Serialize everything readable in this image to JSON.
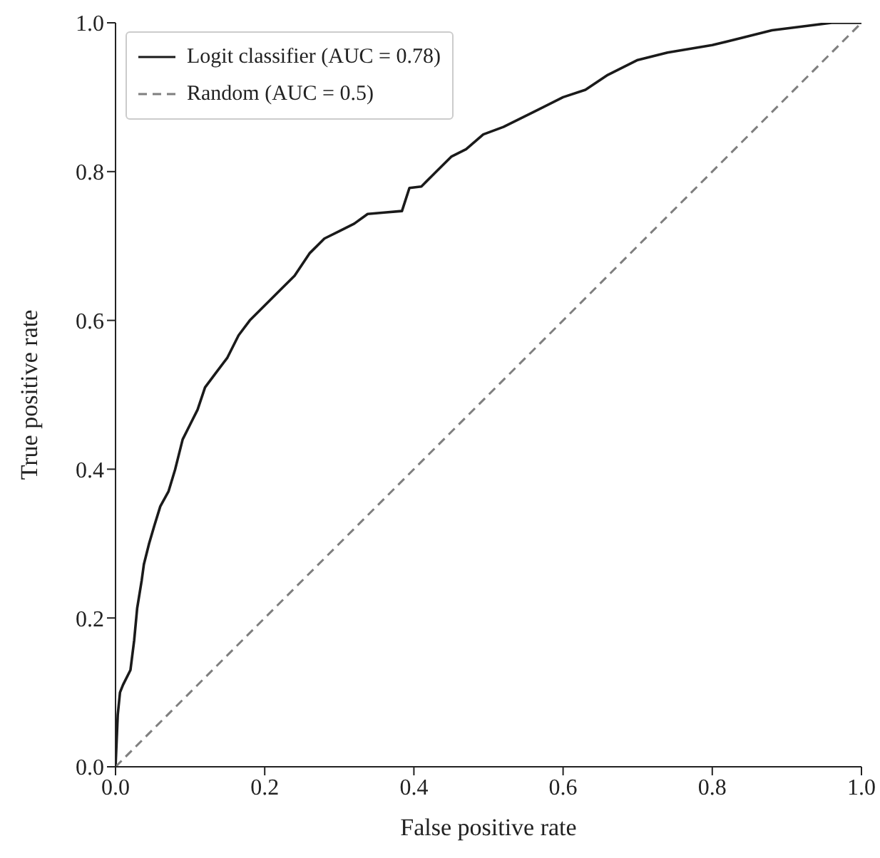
{
  "chart_data": {
    "type": "line",
    "xlabel": "False positive rate",
    "ylabel": "True positive rate",
    "xlim": [
      0,
      1
    ],
    "ylim": [
      0,
      1
    ],
    "xticks": [
      {
        "value": 0,
        "label": "0.0"
      },
      0.2,
      0.4,
      0.6,
      0.8,
      {
        "value": 1,
        "label": "1.0"
      }
    ],
    "yticks": [
      {
        "value": 0,
        "label": "0.0"
      },
      0.2,
      0.4,
      0.6,
      0.8,
      {
        "value": 1,
        "label": "1.0"
      }
    ],
    "legend": "top left",
    "marker": "none",
    "series": [
      {
        "name": "Logit classifier (AUC = 0.78)",
        "color": "#1a1a1a",
        "line_style": "solid",
        "x": [
          0,
          0.003,
          0.006,
          0.01,
          0.02,
          0.025,
          0.029,
          0.035,
          0.038,
          0.045,
          0.052,
          0.06,
          0.071,
          0.08,
          0.09,
          0.1,
          0.11,
          0.12,
          0.135,
          0.15,
          0.165,
          0.18,
          0.203,
          0.22,
          0.24,
          0.26,
          0.28,
          0.3,
          0.32,
          0.338,
          0.36,
          0.384,
          0.394,
          0.41,
          0.43,
          0.45,
          0.47,
          0.493,
          0.52,
          0.56,
          0.6,
          0.63,
          0.66,
          0.7,
          0.74,
          0.8,
          0.84,
          0.88,
          0.92,
          0.96,
          1.0
        ],
        "values": [
          0,
          0.07,
          0.1,
          0.11,
          0.13,
          0.17,
          0.213,
          0.25,
          0.272,
          0.3,
          0.324,
          0.35,
          0.37,
          0.4,
          0.44,
          0.46,
          0.48,
          0.51,
          0.53,
          0.55,
          0.58,
          0.6,
          0.623,
          0.64,
          0.66,
          0.69,
          0.71,
          0.72,
          0.73,
          0.743,
          0.745,
          0.747,
          0.778,
          0.78,
          0.8,
          0.82,
          0.83,
          0.85,
          0.86,
          0.88,
          0.9,
          0.91,
          0.93,
          0.95,
          0.96,
          0.97,
          0.98,
          0.99,
          0.995,
          1.0,
          1.0
        ]
      },
      {
        "name": "Random (AUC = 0.5)",
        "color": "#7f7f7f",
        "line_style": "dashed",
        "x": [
          0,
          1
        ],
        "values": [
          0,
          1
        ]
      }
    ]
  }
}
